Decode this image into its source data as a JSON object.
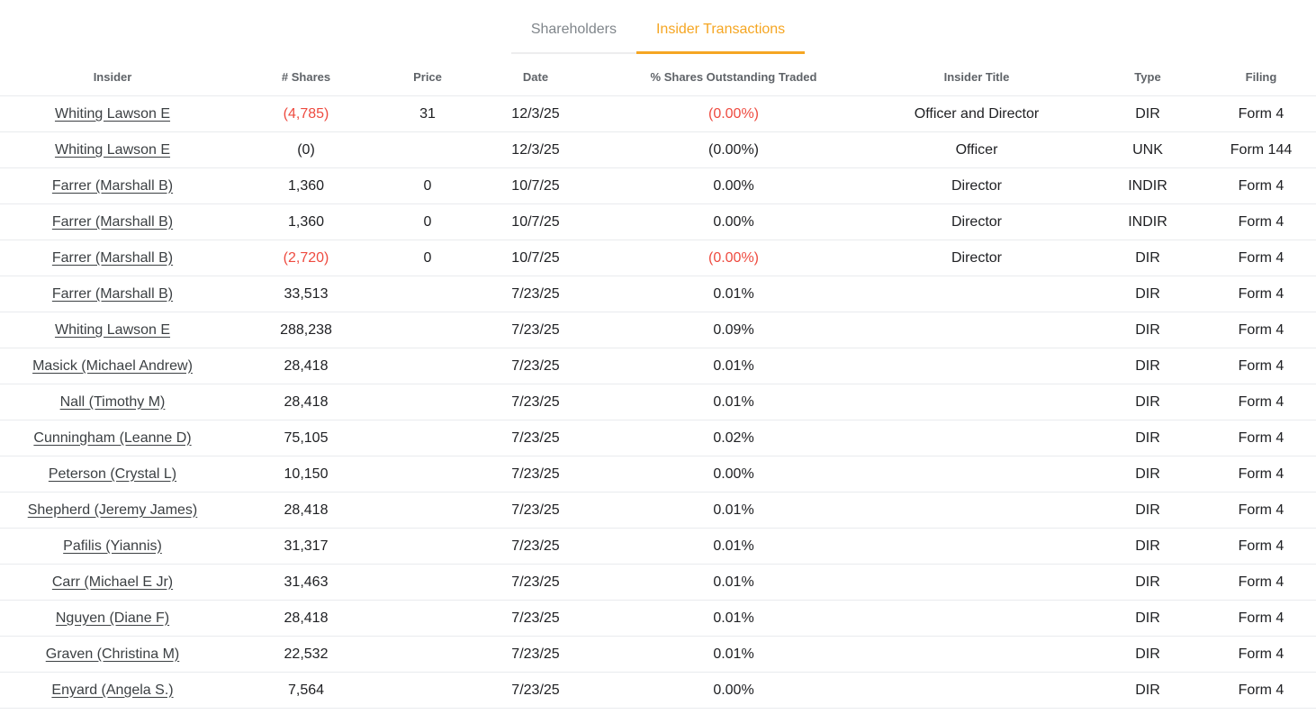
{
  "colors": {
    "accent_orange": "#F5A623",
    "negative_red": "#EE4B40"
  },
  "tabs": [
    {
      "label": "Shareholders",
      "active": false
    },
    {
      "label": "Insider Transactions",
      "active": true
    }
  ],
  "table": {
    "columns": [
      "Insider",
      "# Shares",
      "Price",
      "Date",
      "% Shares Outstanding Traded",
      "Insider Title",
      "Type",
      "Filing"
    ],
    "rows": [
      {
        "insider": "Whiting Lawson E",
        "shares": "(4,785)",
        "shares_red": true,
        "price": "31",
        "date": "12/3/25",
        "pct": "(0.00%)",
        "pct_red": true,
        "title": "Officer and Director",
        "type": "DIR",
        "filing": "Form 4"
      },
      {
        "insider": "Whiting Lawson E",
        "shares": "(0)",
        "shares_red": false,
        "price": "",
        "date": "12/3/25",
        "pct": "(0.00%)",
        "pct_red": false,
        "title": "Officer",
        "type": "UNK",
        "filing": "Form 144"
      },
      {
        "insider": "Farrer (Marshall B)",
        "shares": "1,360",
        "shares_red": false,
        "price": "0",
        "date": "10/7/25",
        "pct": "0.00%",
        "pct_red": false,
        "title": "Director",
        "type": "INDIR",
        "filing": "Form 4"
      },
      {
        "insider": "Farrer (Marshall B)",
        "shares": "1,360",
        "shares_red": false,
        "price": "0",
        "date": "10/7/25",
        "pct": "0.00%",
        "pct_red": false,
        "title": "Director",
        "type": "INDIR",
        "filing": "Form 4"
      },
      {
        "insider": "Farrer (Marshall B)",
        "shares": "(2,720)",
        "shares_red": true,
        "price": "0",
        "date": "10/7/25",
        "pct": "(0.00%)",
        "pct_red": true,
        "title": "Director",
        "type": "DIR",
        "filing": "Form 4"
      },
      {
        "insider": "Farrer (Marshall B)",
        "shares": "33,513",
        "shares_red": false,
        "price": "",
        "date": "7/23/25",
        "pct": "0.01%",
        "pct_red": false,
        "title": "",
        "type": "DIR",
        "filing": "Form 4"
      },
      {
        "insider": "Whiting Lawson E",
        "shares": "288,238",
        "shares_red": false,
        "price": "",
        "date": "7/23/25",
        "pct": "0.09%",
        "pct_red": false,
        "title": "",
        "type": "DIR",
        "filing": "Form 4"
      },
      {
        "insider": "Masick (Michael Andrew)",
        "shares": "28,418",
        "shares_red": false,
        "price": "",
        "date": "7/23/25",
        "pct": "0.01%",
        "pct_red": false,
        "title": "",
        "type": "DIR",
        "filing": "Form 4"
      },
      {
        "insider": "Nall (Timothy M)",
        "shares": "28,418",
        "shares_red": false,
        "price": "",
        "date": "7/23/25",
        "pct": "0.01%",
        "pct_red": false,
        "title": "",
        "type": "DIR",
        "filing": "Form 4"
      },
      {
        "insider": "Cunningham (Leanne D)",
        "shares": "75,105",
        "shares_red": false,
        "price": "",
        "date": "7/23/25",
        "pct": "0.02%",
        "pct_red": false,
        "title": "",
        "type": "DIR",
        "filing": "Form 4"
      },
      {
        "insider": "Peterson (Crystal L)",
        "shares": "10,150",
        "shares_red": false,
        "price": "",
        "date": "7/23/25",
        "pct": "0.00%",
        "pct_red": false,
        "title": "",
        "type": "DIR",
        "filing": "Form 4"
      },
      {
        "insider": "Shepherd (Jeremy James)",
        "shares": "28,418",
        "shares_red": false,
        "price": "",
        "date": "7/23/25",
        "pct": "0.01%",
        "pct_red": false,
        "title": "",
        "type": "DIR",
        "filing": "Form 4"
      },
      {
        "insider": "Pafilis (Yiannis)",
        "shares": "31,317",
        "shares_red": false,
        "price": "",
        "date": "7/23/25",
        "pct": "0.01%",
        "pct_red": false,
        "title": "",
        "type": "DIR",
        "filing": "Form 4"
      },
      {
        "insider": "Carr (Michael E Jr)",
        "shares": "31,463",
        "shares_red": false,
        "price": "",
        "date": "7/23/25",
        "pct": "0.01%",
        "pct_red": false,
        "title": "",
        "type": "DIR",
        "filing": "Form 4"
      },
      {
        "insider": "Nguyen (Diane F)",
        "shares": "28,418",
        "shares_red": false,
        "price": "",
        "date": "7/23/25",
        "pct": "0.01%",
        "pct_red": false,
        "title": "",
        "type": "DIR",
        "filing": "Form 4"
      },
      {
        "insider": "Graven (Christina M)",
        "shares": "22,532",
        "shares_red": false,
        "price": "",
        "date": "7/23/25",
        "pct": "0.01%",
        "pct_red": false,
        "title": "",
        "type": "DIR",
        "filing": "Form 4"
      },
      {
        "insider": "Enyard (Angela S.)",
        "shares": "7,564",
        "shares_red": false,
        "price": "",
        "date": "7/23/25",
        "pct": "0.00%",
        "pct_red": false,
        "title": "",
        "type": "DIR",
        "filing": "Form 4"
      }
    ]
  }
}
